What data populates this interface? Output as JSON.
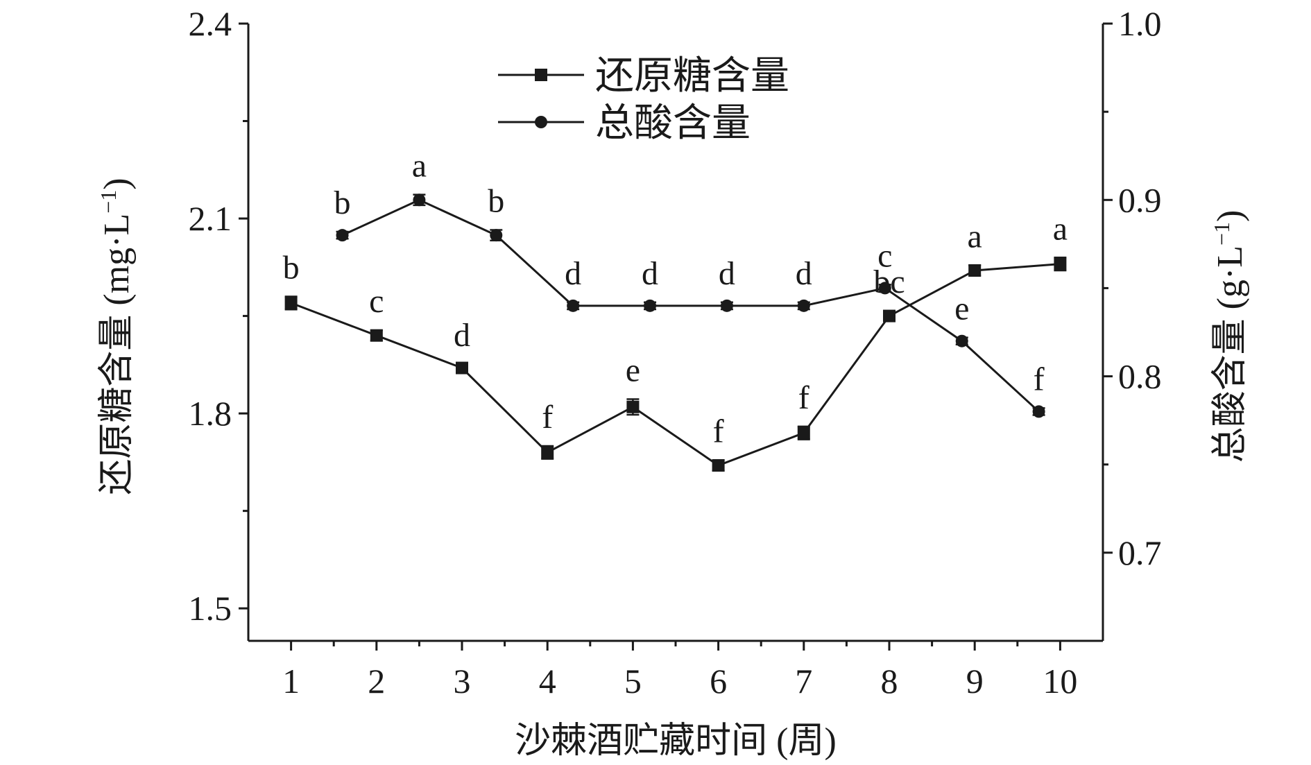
{
  "chart_data": {
    "type": "line",
    "xlabel": "沙棘酒贮藏时间 (周)",
    "x": [
      1,
      2,
      3,
      4,
      5,
      6,
      7,
      8,
      9,
      10
    ],
    "x_ticks": [
      "1",
      "2",
      "3",
      "4",
      "5",
      "6",
      "7",
      "8",
      "9",
      "10"
    ],
    "y_left": {
      "label": "还原糖含量 (mg·L",
      "label_sup": "−1",
      "label_close": ")",
      "ylim": [
        1.45,
        2.4
      ],
      "ticks": [
        "1.5",
        "1.8",
        "2.1",
        "2.4"
      ]
    },
    "y_right": {
      "label": "总酸含量 (g·L",
      "label_sup": "−1",
      "label_close": ")",
      "ylim": [
        0.65,
        1.0
      ],
      "ticks": [
        "0.7",
        "0.8",
        "0.9",
        "1.0"
      ]
    },
    "legend_placement": "top-center",
    "series": [
      {
        "name": "还原糖含量",
        "axis": "left",
        "marker": "square",
        "x": [
          1,
          2,
          3,
          4,
          5,
          6,
          7,
          8,
          9,
          10
        ],
        "values": [
          1.97,
          1.92,
          1.87,
          1.74,
          1.81,
          1.72,
          1.77,
          1.95,
          2.02,
          2.03
        ],
        "errors": [
          0.01,
          0.008,
          0.006,
          0.01,
          0.012,
          0.008,
          0.01,
          0.008,
          0.008,
          0.01
        ],
        "labels": [
          "b",
          "c",
          "d",
          "f",
          "e",
          "f",
          "f",
          "bc",
          "a",
          "a"
        ]
      },
      {
        "name": "总酸含量",
        "axis": "right",
        "marker": "circle",
        "x": [
          1.6,
          2.5,
          3.4,
          4.3,
          5.2,
          6.1,
          7.0,
          7.95,
          8.85,
          9.75
        ],
        "values": [
          0.88,
          0.9,
          0.88,
          0.84,
          0.84,
          0.84,
          0.84,
          0.85,
          0.82,
          0.78
        ],
        "errors": [
          0.002,
          0.003,
          0.003,
          0.002,
          0.002,
          0.002,
          0.002,
          0.002,
          0.002,
          0.002
        ],
        "labels": [
          "b",
          "a",
          "b",
          "d",
          "d",
          "d",
          "d",
          "c",
          "e",
          "f"
        ]
      }
    ]
  }
}
